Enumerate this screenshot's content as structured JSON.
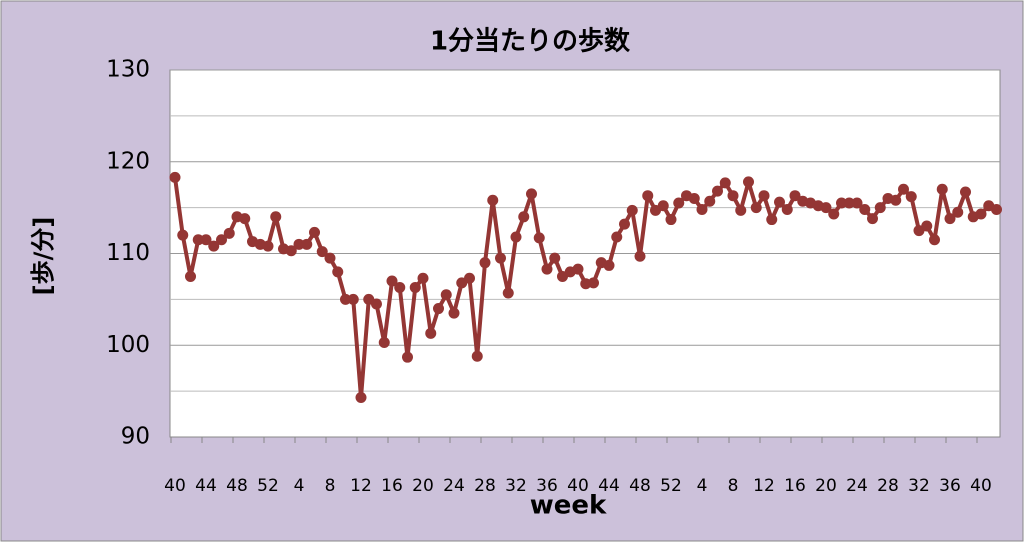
{
  "chart_data": {
    "type": "line",
    "title": "1分当たりの歩数",
    "x_label": "week",
    "y_label": "[歩/分]",
    "categories": [
      "40",
      null,
      null,
      null,
      "44",
      null,
      null,
      null,
      "48",
      null,
      null,
      null,
      "52",
      null,
      null,
      null,
      "4",
      null,
      null,
      null,
      "8",
      null,
      null,
      null,
      "12",
      null,
      null,
      null,
      "16",
      null,
      null,
      null,
      "20",
      null,
      null,
      null,
      "24",
      null,
      null,
      null,
      "28",
      null,
      null,
      null,
      "32",
      null,
      null,
      null,
      "36",
      null,
      null,
      null,
      "40",
      null,
      null,
      null,
      "44",
      null,
      null,
      null,
      "48",
      null,
      null,
      null,
      "52",
      null,
      null,
      null,
      "4",
      null,
      null,
      null,
      "8",
      null,
      null,
      null,
      "12",
      null,
      null,
      null,
      "16",
      null,
      null,
      null,
      "20",
      null,
      null,
      null,
      "24",
      null,
      null,
      null,
      "28",
      null,
      null,
      null,
      "32",
      null,
      null,
      null,
      "36",
      null,
      null,
      null,
      "40",
      null,
      null
    ],
    "values": [
      118.3,
      112,
      107.5,
      111.5,
      111.5,
      110.8,
      111.5,
      112.2,
      114,
      113.8,
      111.3,
      111,
      110.8,
      114,
      110.5,
      110.3,
      111,
      111,
      112.3,
      110.2,
      109.5,
      108,
      105,
      105,
      94.3,
      105,
      104.5,
      100.3,
      107,
      106.3,
      98.7,
      106.3,
      107.3,
      101.3,
      104,
      105.5,
      103.5,
      106.8,
      107.3,
      98.8,
      109,
      115.8,
      109.5,
      105.7,
      111.8,
      114,
      116.5,
      111.7,
      108.3,
      109.5,
      107.5,
      108,
      108.3,
      106.7,
      106.8,
      109,
      108.7,
      111.8,
      113.2,
      114.7,
      109.7,
      116.3,
      114.7,
      115.2,
      113.7,
      115.5,
      116.3,
      116,
      114.8,
      115.7,
      116.8,
      117.7,
      116.3,
      114.7,
      117.8,
      115,
      116.3,
      113.7,
      115.6,
      114.8,
      116.3,
      115.7,
      115.5,
      115.2,
      115,
      114.3,
      115.5,
      115.5,
      115.5,
      114.8,
      113.8,
      115,
      116,
      115.8,
      117,
      116.2,
      112.5,
      113,
      111.5,
      117,
      113.8,
      114.5,
      116.7,
      114,
      114.3,
      115.2,
      114.8
    ],
    "color": "#943634",
    "ylim": [
      90,
      130
    ],
    "yticks": [
      90,
      100,
      110,
      120,
      130
    ],
    "minor_yticks": [
      95,
      105,
      115,
      125
    ],
    "grid": true
  }
}
